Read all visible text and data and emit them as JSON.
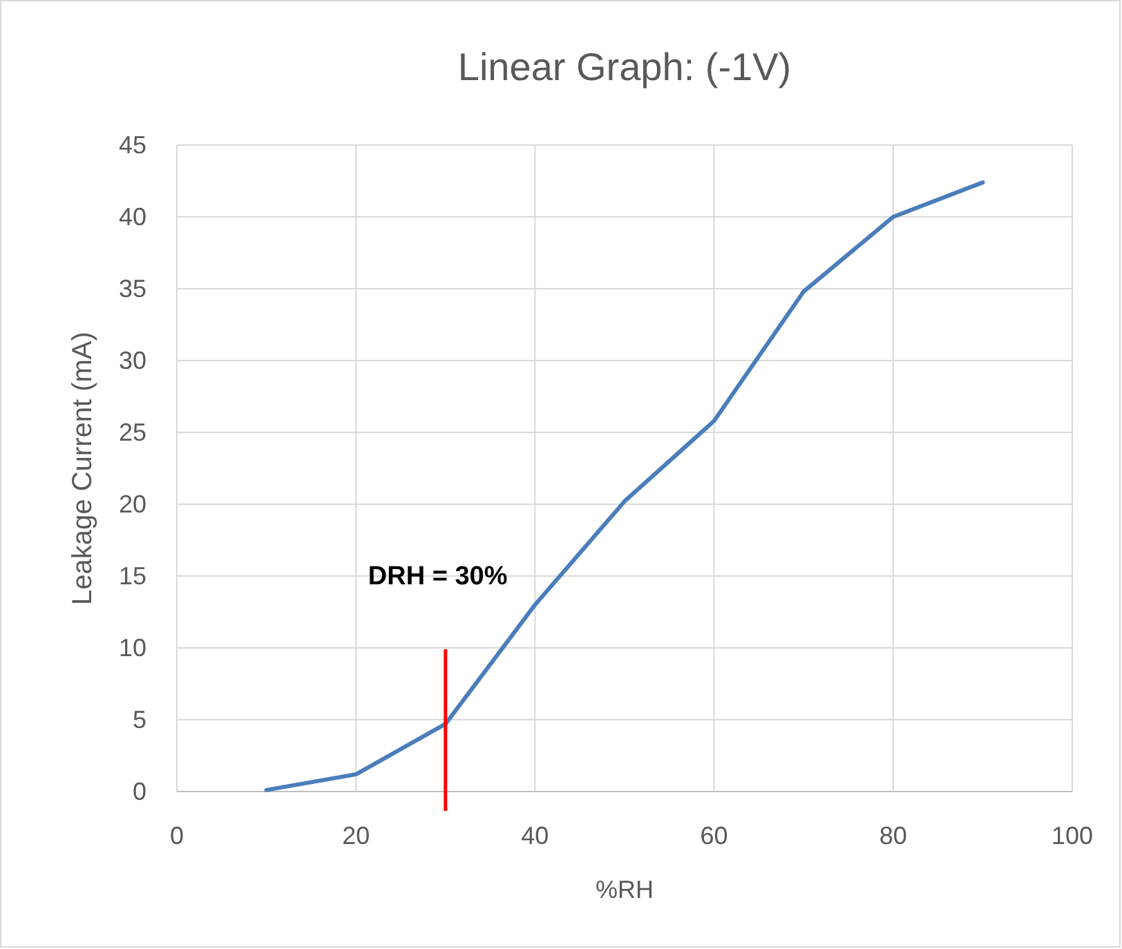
{
  "chart_data": {
    "type": "line",
    "title": "Linear Graph: (-1V)",
    "xlabel": "%RH",
    "ylabel": "Leakage Current (mA)",
    "x": [
      10,
      20,
      30,
      40,
      50,
      60,
      70,
      80,
      90
    ],
    "series": [
      {
        "color": "#4a7ebb",
        "values": [
          0.1,
          1.2,
          4.7,
          13,
          20.2,
          25.8,
          34.8,
          40,
          42.4
        ]
      }
    ],
    "xlim": [
      0,
      100
    ],
    "xticks": [
      0,
      20,
      40,
      60,
      80,
      100
    ],
    "ylim": [
      0,
      45
    ],
    "yticks": [
      0,
      5,
      10,
      15,
      20,
      25,
      30,
      35,
      40,
      45
    ],
    "grid": true,
    "marker": "none",
    "line_style": "solid",
    "ref_lines": [
      {
        "axis": "x",
        "value": 30,
        "label": "DRH = 30%",
        "color": "#ff0000"
      }
    ]
  }
}
